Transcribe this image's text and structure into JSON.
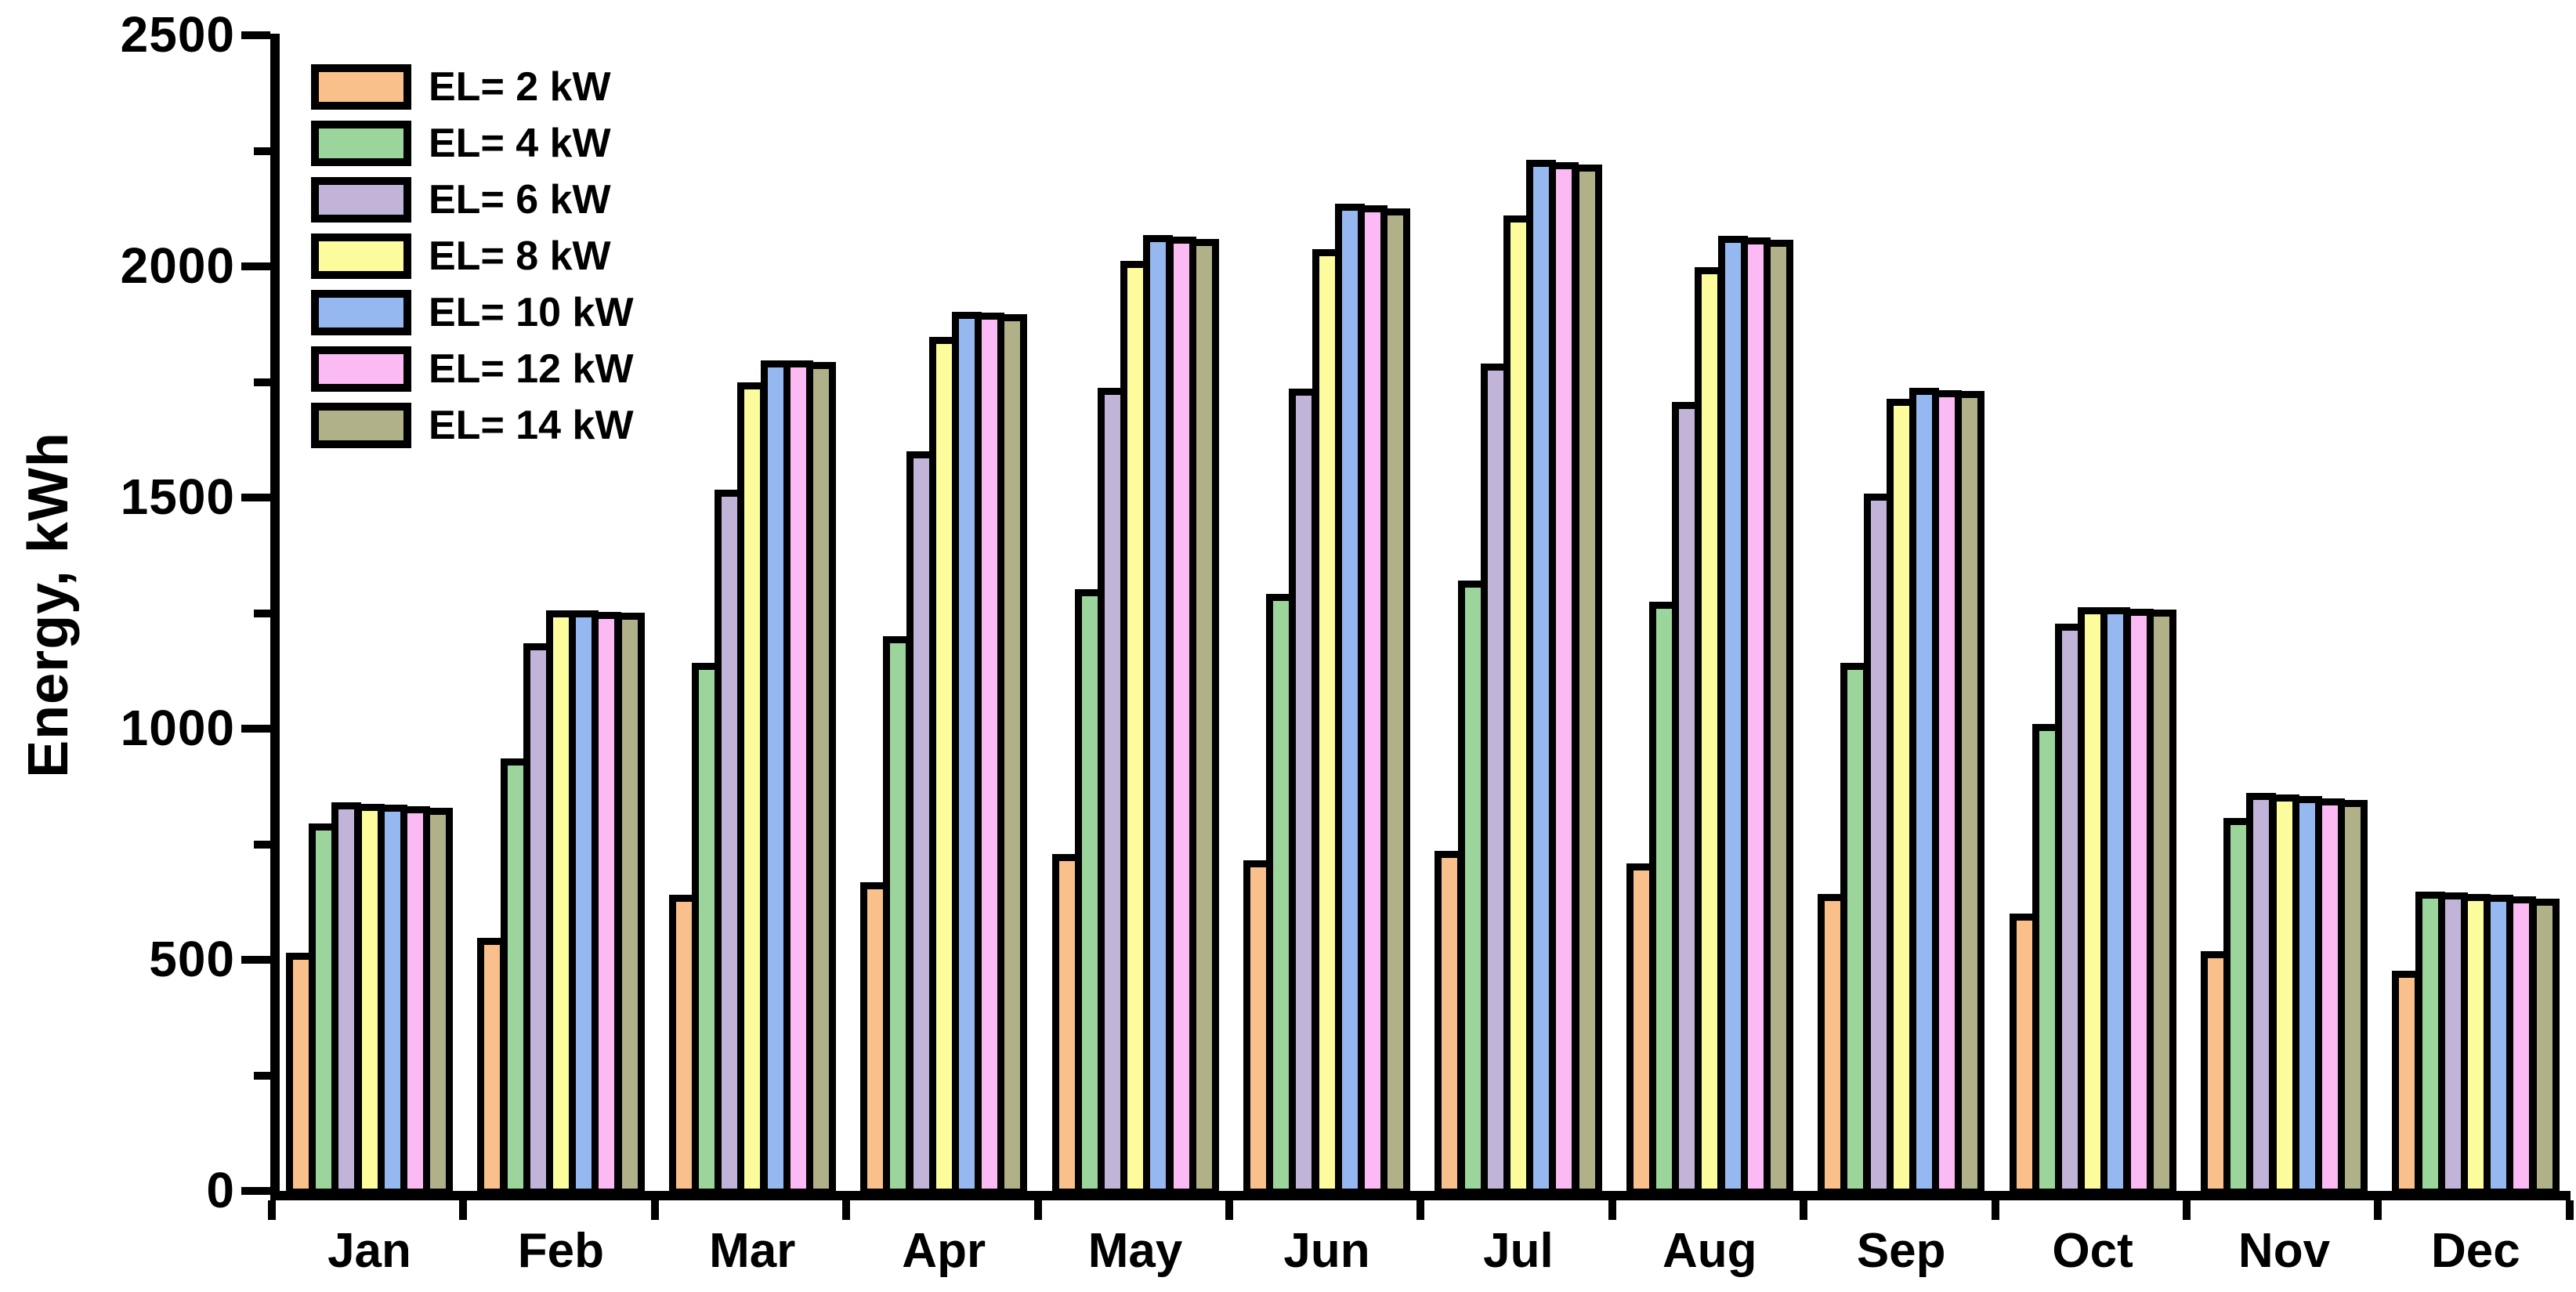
{
  "y_axis": {
    "title": "Energy, kWh",
    "min": 0,
    "max": 2500,
    "major_tick_step": 500,
    "minor_tick_step": 250,
    "tick_labels": [
      "0",
      "500",
      "1000",
      "1500",
      "2000",
      "2500"
    ],
    "minor_ticks": [
      250,
      750,
      1250,
      1750,
      2250
    ]
  },
  "x_axis": {
    "categories": [
      "Jan",
      "Feb",
      "Mar",
      "Apr",
      "May",
      "Jun",
      "Jul",
      "Aug",
      "Sep",
      "Oct",
      "Nov",
      "Dec"
    ]
  },
  "chart_data": {
    "type": "bar",
    "title": "",
    "xlabel": "",
    "ylabel": "Energy, kWh",
    "ylim": [
      0,
      2500
    ],
    "grid": false,
    "legend_position": "upper-left",
    "background_color": "#ffffff",
    "outline_color": "#000000",
    "categories": [
      "Jan",
      "Feb",
      "Mar",
      "Apr",
      "May",
      "Jun",
      "Jul",
      "Aug",
      "Sep",
      "Oct",
      "Nov",
      "Dec"
    ],
    "series": [
      {
        "name": "EL= 2 kW",
        "color": "#FAC08C",
        "values": [
          515,
          547,
          640,
          668,
          728,
          716,
          735,
          709,
          643,
          600,
          518,
          476
        ]
      },
      {
        "name": "EL= 4 kW",
        "color": "#9CD59B",
        "values": [
          795,
          935,
          1143,
          1200,
          1302,
          1291,
          1321,
          1275,
          1142,
          1010,
          806,
          648
        ]
      },
      {
        "name": "EL= 6 kW",
        "color": "#C2B4D8",
        "values": [
          840,
          1185,
          1517,
          1600,
          1737,
          1736,
          1790,
          1707,
          1508,
          1227,
          861,
          645
        ]
      },
      {
        "name": "EL= 8 kW",
        "color": "#FCFC9C",
        "values": [
          837,
          1256,
          1750,
          1848,
          2012,
          2037,
          2110,
          1998,
          1713,
          1262,
          858,
          643
        ]
      },
      {
        "name": "EL= 10 kW",
        "color": "#96B8F0",
        "values": [
          835,
          1256,
          1797,
          1902,
          2068,
          2135,
          2230,
          2066,
          1738,
          1262,
          855,
          641
        ]
      },
      {
        "name": "EL= 12 kW",
        "color": "#FCBAF5",
        "values": [
          832,
          1253,
          1796,
          1900,
          2065,
          2132,
          2226,
          2063,
          1733,
          1259,
          850,
          638
        ]
      },
      {
        "name": "EL= 14 kW",
        "color": "#B0B189",
        "values": [
          828,
          1251,
          1793,
          1897,
          2060,
          2126,
          2220,
          2057,
          1730,
          1257,
          846,
          633
        ]
      }
    ]
  }
}
